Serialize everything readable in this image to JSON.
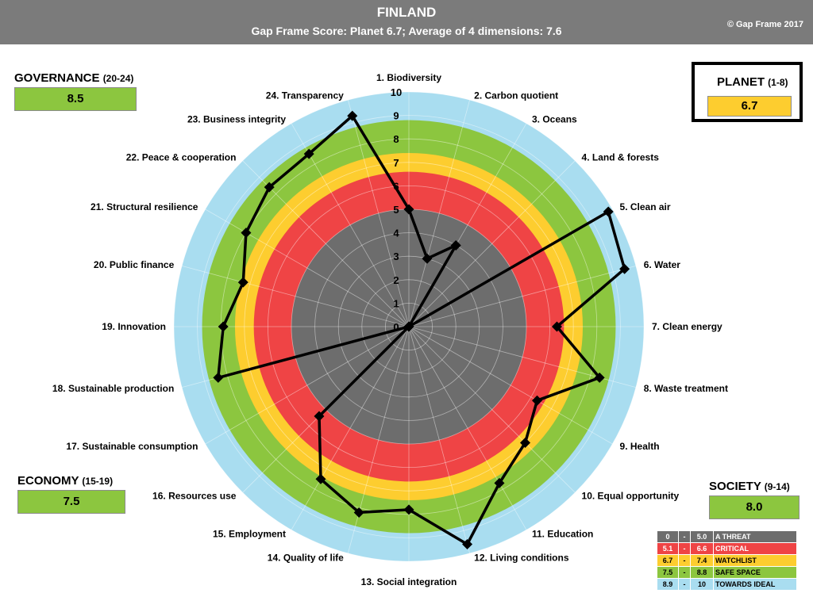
{
  "header": {
    "title": "FINLAND",
    "subtitle": "Gap Frame Score: Planet 6.7;     Average of 4 dimensions: 7.6",
    "copyright": "© Gap Frame 2017"
  },
  "dimensions": {
    "governance": {
      "name": "GOVERNANCE",
      "range": "(20-24)",
      "score": "8.5",
      "color": "#8cc63f"
    },
    "planet": {
      "name": "PLANET",
      "range": "(1-8)",
      "score": "6.7",
      "color": "#fdcd2f"
    },
    "economy": {
      "name": "ECONOMY",
      "range": "(15-19)",
      "score": "7.5",
      "color": "#8cc63f"
    },
    "society": {
      "name": "SOCIETY",
      "range": "(9-14)",
      "score": "8.0",
      "color": "#8cc63f"
    }
  },
  "legend": [
    {
      "lo": "0",
      "sep": "-",
      "hi": "5.0",
      "label": "A THREAT",
      "color": "#6d6d6d",
      "text_color": "#ffffff"
    },
    {
      "lo": "5.1",
      "sep": "-",
      "hi": "6.6",
      "label": "CRITICAL",
      "color": "#ef4445",
      "text_color": "#ffffff"
    },
    {
      "lo": "6.7",
      "sep": "-",
      "hi": "7.4",
      "label": "WATCHLIST",
      "color": "#fdcd2f",
      "text_color": "#000000"
    },
    {
      "lo": "7.5",
      "sep": "-",
      "hi": "8.8",
      "label": "SAFE  SPACE",
      "color": "#8cc63f",
      "text_color": "#000000"
    },
    {
      "lo": "8.9",
      "sep": "-",
      "hi": "10",
      "label": "TOWARDS IDEAL",
      "color": "#a9ddf0",
      "text_color": "#000000"
    }
  ],
  "chart_data": {
    "type": "radar",
    "title": "FINLAND",
    "rlim": [
      0,
      10
    ],
    "ticks": [
      "0",
      "1",
      "2",
      "3",
      "4",
      "5",
      "6",
      "7",
      "8",
      "9",
      "10"
    ],
    "bands": [
      {
        "from": 0,
        "to": 5.0,
        "color": "#6d6d6d"
      },
      {
        "from": 5.0,
        "to": 6.6,
        "color": "#ef4445"
      },
      {
        "from": 6.6,
        "to": 7.4,
        "color": "#fdcd2f"
      },
      {
        "from": 7.4,
        "to": 8.8,
        "color": "#8cc63f"
      },
      {
        "from": 8.8,
        "to": 10.0,
        "color": "#a9ddf0"
      }
    ],
    "categories": [
      "1. Biodiversity",
      "2. Carbon quotient",
      "3. Oceans",
      "4. Land & forests",
      "5. Clean air",
      "6. Water",
      "7. Clean energy",
      "8. Waste treatment",
      "9. Health",
      "10. Equal opportunity",
      "11. Education",
      "12. Living conditions",
      "13. Social integration",
      "14. Quality of life",
      "15. Employment",
      "16. Resources use",
      "17. Sustainable consumption",
      "18. Sustainable production",
      "19. Innovation",
      "20. Public finance",
      "21. Structural resilience",
      "22. Peace & cooperation",
      "23. Business integrity",
      "24. Transparency"
    ],
    "series": [
      {
        "name": "Finland",
        "color": "#000000",
        "values": [
          5.0,
          3.0,
          4.0,
          0,
          9.8,
          9.5,
          6.3,
          8.4,
          6.3,
          7.0,
          7.7,
          9.6,
          7.8,
          8.2,
          7.5,
          5.4,
          0,
          8.4,
          7.9,
          7.3,
          8.0,
          8.4,
          8.5,
          9.3
        ]
      }
    ]
  }
}
